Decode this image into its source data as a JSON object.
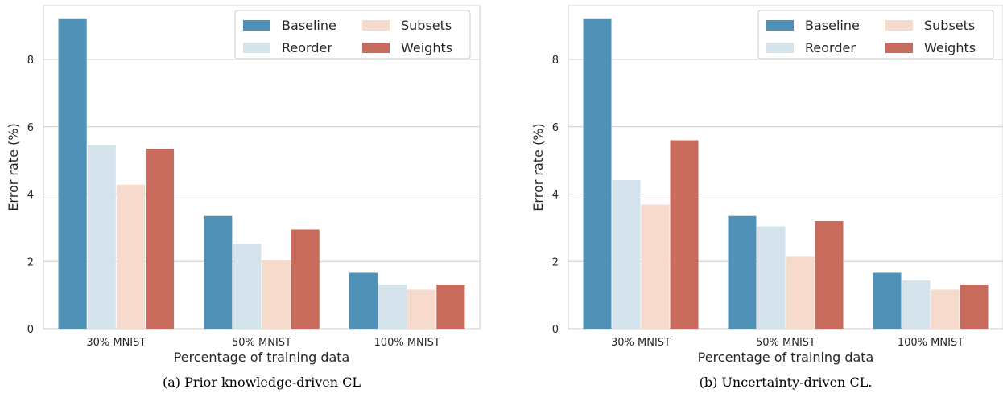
{
  "chart_data": [
    {
      "type": "bar",
      "caption": "(a) Prior knowledge-driven CL",
      "xlabel": "Percentage of training data",
      "ylabel": "Error rate (%)",
      "categories": [
        "30% MNIST",
        "50% MNIST",
        "100% MNIST"
      ],
      "ylim": [
        0,
        9.6
      ],
      "yticks": [
        0,
        2,
        4,
        6,
        8
      ],
      "grid": "horizontal",
      "legend_position": "top-right",
      "series": [
        {
          "name": "Baseline",
          "color": "#5091b8",
          "values": [
            9.2,
            3.35,
            1.66
          ]
        },
        {
          "name": "Reorder",
          "color": "#d5e3ec",
          "values": [
            5.45,
            2.52,
            1.31
          ]
        },
        {
          "name": "Subsets",
          "color": "#f6dacb",
          "values": [
            4.28,
            2.04,
            1.16
          ]
        },
        {
          "name": "Weights",
          "color": "#c96b5c",
          "values": [
            5.35,
            2.95,
            1.31
          ]
        }
      ]
    },
    {
      "type": "bar",
      "caption": "(b) Uncertainty-driven CL.",
      "xlabel": "Percentage of training data",
      "ylabel": "Error rate (%)",
      "categories": [
        "30% MNIST",
        "50% MNIST",
        "100% MNIST"
      ],
      "ylim": [
        0,
        9.6
      ],
      "yticks": [
        0,
        2,
        4,
        6,
        8
      ],
      "grid": "horizontal",
      "legend_position": "top-right",
      "series": [
        {
          "name": "Baseline",
          "color": "#5091b8",
          "values": [
            9.2,
            3.35,
            1.66
          ]
        },
        {
          "name": "Reorder",
          "color": "#d5e3ec",
          "values": [
            4.42,
            3.04,
            1.43
          ]
        },
        {
          "name": "Subsets",
          "color": "#f6dacb",
          "values": [
            3.69,
            2.14,
            1.16
          ]
        },
        {
          "name": "Weights",
          "color": "#c96b5c",
          "values": [
            5.6,
            3.2,
            1.31
          ]
        }
      ]
    }
  ]
}
